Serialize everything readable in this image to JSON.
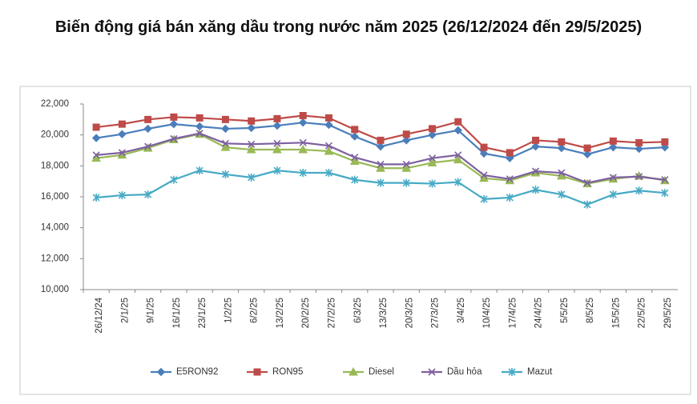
{
  "chart_data": {
    "type": "line",
    "title": "Biến động giá bán xăng dầu trong nước năm 2025 (26/12/2024 đến 29/5/2025)",
    "categories": [
      "26/12/24",
      "2/1/25",
      "9/1/25",
      "16/1/25",
      "23/1/25",
      "1/2/25",
      "6/2/25",
      "13/2/25",
      "20/2/25",
      "27/2/25",
      "6/3/25",
      "13/3/25",
      "20/3/25",
      "27/3/25",
      "3/4/25",
      "10/4/25",
      "17/4/25",
      "24/4/25",
      "5/5/25",
      "8/5/25",
      "15/5/25",
      "22/5/25",
      "29/5/25"
    ],
    "series": [
      {
        "name": "E5RON92",
        "color": "#4a7ebb",
        "marker": "diamond",
        "values": [
          19800,
          20050,
          20400,
          20700,
          20550,
          20400,
          20450,
          20600,
          20800,
          20650,
          19900,
          19250,
          19650,
          20000,
          20300,
          18800,
          18500,
          19250,
          19150,
          18750,
          19200,
          19100,
          19200
        ]
      },
      {
        "name": "RON95",
        "color": "#be4b48",
        "marker": "square",
        "values": [
          20500,
          20700,
          21000,
          21150,
          21100,
          21000,
          20900,
          21050,
          21250,
          21100,
          20350,
          19650,
          20050,
          20400,
          20850,
          19200,
          18850,
          19650,
          19550,
          19150,
          19600,
          19500,
          19550
        ]
      },
      {
        "name": "Diesel",
        "color": "#98b954",
        "marker": "triangle",
        "values": [
          18500,
          18700,
          19150,
          19700,
          20050,
          19200,
          19050,
          19050,
          19050,
          18950,
          18300,
          17850,
          17850,
          18200,
          18400,
          17200,
          17050,
          17550,
          17350,
          16850,
          17150,
          17350,
          17050
        ]
      },
      {
        "name": "Dầu hỏa",
        "color": "#7d60a0",
        "marker": "x",
        "values": [
          18700,
          18850,
          19250,
          19750,
          20100,
          19450,
          19400,
          19450,
          19500,
          19300,
          18550,
          18100,
          18100,
          18500,
          18700,
          17400,
          17150,
          17650,
          17550,
          16900,
          17250,
          17300,
          17100
        ]
      },
      {
        "name": "Mazut",
        "color": "#46aac5",
        "marker": "star",
        "values": [
          15950,
          16100,
          16150,
          17100,
          17700,
          17450,
          17250,
          17700,
          17550,
          17550,
          17100,
          16900,
          16900,
          16850,
          16950,
          15850,
          15950,
          16450,
          16150,
          15500,
          16150,
          16400,
          16250
        ]
      }
    ],
    "ylim": [
      10000,
      22000
    ],
    "yticks": [
      {
        "value": 10000,
        "label": "10,000"
      },
      {
        "value": 12000,
        "label": "12,000"
      },
      {
        "value": 14000,
        "label": "14,000"
      },
      {
        "value": 16000,
        "label": "16,000"
      },
      {
        "value": 18000,
        "label": "18,000"
      },
      {
        "value": 20000,
        "label": "20,000"
      },
      {
        "value": 22000,
        "label": "22,000"
      }
    ],
    "grid": false,
    "legend": "bottom"
  }
}
